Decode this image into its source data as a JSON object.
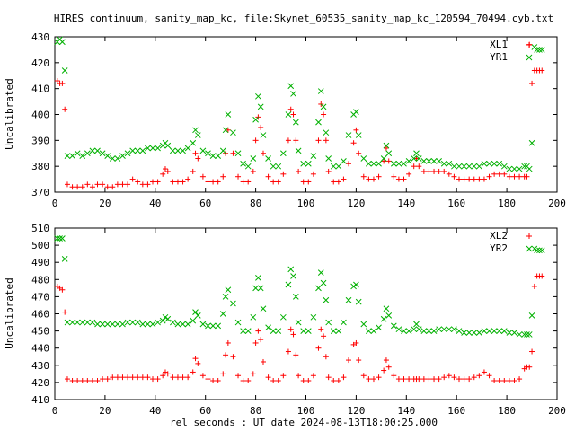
{
  "figure": {
    "title": "HIRES continuum, sanity_map_kc, file:Skynet_60535_sanity_map_kc_120594_70494.cyb.txt",
    "xlabel": "rel seconds : UT date 2024-08-13T18:00:25.000"
  },
  "colors": {
    "red_series": "#ff0000",
    "green_series": "#00b000",
    "axis": "#000000"
  },
  "chart_data": [
    {
      "type": "scatter",
      "title": "",
      "xlabel": "",
      "ylabel": "Uncalibrated",
      "xlim": [
        0,
        200
      ],
      "ylim": [
        370,
        430
      ],
      "x_ticks": [
        0,
        20,
        40,
        60,
        80,
        100,
        120,
        140,
        160,
        180,
        200
      ],
      "y_ticks": [
        370,
        380,
        390,
        400,
        410,
        420,
        430
      ],
      "legend_position": "top-right",
      "grid": false,
      "series": [
        {
          "name": "XL1",
          "marker": "plus",
          "color": "#ff0000",
          "x": [
            1,
            2,
            3,
            4,
            5,
            7,
            9,
            11,
            13,
            15,
            17,
            19,
            21,
            23,
            25,
            27,
            29,
            31,
            33,
            35,
            37,
            39,
            41,
            43,
            44,
            45,
            47,
            49,
            51,
            53,
            55,
            56,
            57,
            59,
            61,
            63,
            65,
            67,
            68,
            69,
            71,
            73,
            75,
            77,
            79,
            80,
            81,
            82,
            83,
            85,
            87,
            89,
            91,
            93,
            94,
            95,
            96,
            97,
            99,
            101,
            103,
            105,
            106,
            107,
            108,
            109,
            111,
            113,
            115,
            117,
            119,
            120,
            121,
            123,
            125,
            127,
            129,
            131,
            132,
            133,
            135,
            137,
            139,
            141,
            143,
            144,
            145,
            147,
            149,
            151,
            153,
            155,
            157,
            159,
            161,
            163,
            165,
            167,
            169,
            171,
            173,
            175,
            177,
            179,
            181,
            183,
            185,
            187,
            188,
            189,
            190,
            191,
            192,
            193,
            194
          ],
          "y": [
            413,
            412,
            412,
            402,
            373,
            372,
            372,
            372,
            373,
            372,
            373,
            373,
            372,
            372,
            373,
            373,
            373,
            375,
            374,
            373,
            373,
            374,
            374,
            377,
            379,
            378,
            374,
            374,
            374,
            375,
            378,
            385,
            383,
            376,
            374,
            374,
            374,
            376,
            385,
            394,
            385,
            376,
            374,
            374,
            378,
            390,
            399,
            395,
            385,
            376,
            374,
            374,
            377,
            390,
            402,
            400,
            390,
            378,
            374,
            374,
            377,
            390,
            404,
            400,
            390,
            378,
            374,
            374,
            375,
            381,
            389,
            394,
            385,
            376,
            375,
            375,
            376,
            382,
            387,
            382,
            376,
            375,
            375,
            377,
            380,
            383,
            380,
            378,
            378,
            378,
            378,
            378,
            377,
            376,
            375,
            375,
            375,
            375,
            375,
            375,
            376,
            377,
            377,
            377,
            376,
            376,
            376,
            376,
            376,
            427,
            412,
            417,
            417,
            417,
            417
          ]
        },
        {
          "name": "YR1",
          "marker": "cross",
          "color": "#00b000",
          "x": [
            1,
            2,
            3,
            4,
            5,
            7,
            9,
            11,
            13,
            15,
            17,
            19,
            21,
            23,
            25,
            27,
            29,
            31,
            33,
            35,
            37,
            39,
            41,
            43,
            44,
            45,
            47,
            49,
            51,
            53,
            55,
            56,
            57,
            59,
            61,
            63,
            65,
            67,
            68,
            69,
            71,
            73,
            75,
            77,
            79,
            80,
            81,
            82,
            83,
            85,
            87,
            89,
            91,
            93,
            94,
            95,
            96,
            97,
            99,
            101,
            103,
            105,
            106,
            107,
            108,
            109,
            111,
            113,
            115,
            117,
            119,
            120,
            121,
            123,
            125,
            127,
            129,
            131,
            132,
            133,
            135,
            137,
            139,
            141,
            143,
            144,
            145,
            147,
            149,
            151,
            153,
            155,
            157,
            159,
            161,
            163,
            165,
            167,
            169,
            171,
            173,
            175,
            177,
            179,
            181,
            183,
            185,
            187,
            188,
            189,
            190,
            191,
            192,
            193,
            194
          ],
          "y": [
            428,
            429,
            428,
            417,
            384,
            384,
            385,
            384,
            385,
            386,
            386,
            385,
            384,
            383,
            383,
            384,
            385,
            386,
            386,
            386,
            387,
            387,
            387,
            388,
            389,
            388,
            386,
            386,
            386,
            387,
            389,
            394,
            392,
            386,
            385,
            384,
            384,
            386,
            394,
            400,
            393,
            385,
            381,
            380,
            383,
            398,
            407,
            403,
            392,
            383,
            380,
            380,
            385,
            400,
            411,
            408,
            397,
            386,
            381,
            381,
            384,
            397,
            409,
            403,
            393,
            383,
            380,
            380,
            382,
            392,
            400,
            401,
            392,
            383,
            381,
            381,
            381,
            383,
            388,
            385,
            381,
            381,
            381,
            382,
            383,
            385,
            383,
            382,
            382,
            382,
            382,
            381,
            381,
            380,
            380,
            380,
            380,
            380,
            380,
            381,
            381,
            381,
            381,
            380,
            379,
            379,
            379,
            380,
            380,
            379,
            389,
            426,
            425,
            425,
            425
          ]
        }
      ]
    },
    {
      "type": "scatter",
      "title": "",
      "xlabel": "",
      "ylabel": "Uncalibrated",
      "xlim": [
        0,
        200
      ],
      "ylim": [
        410,
        510
      ],
      "x_ticks": [
        0,
        20,
        40,
        60,
        80,
        100,
        120,
        140,
        160,
        180,
        200
      ],
      "y_ticks": [
        410,
        420,
        430,
        440,
        450,
        460,
        470,
        480,
        490,
        500,
        510
      ],
      "legend_position": "top-right",
      "grid": false,
      "series": [
        {
          "name": "XL2",
          "marker": "plus",
          "color": "#ff0000",
          "x": [
            1,
            2,
            3,
            4,
            5,
            7,
            9,
            11,
            13,
            15,
            17,
            19,
            21,
            23,
            25,
            27,
            29,
            31,
            33,
            35,
            37,
            39,
            41,
            43,
            44,
            45,
            47,
            49,
            51,
            53,
            55,
            56,
            57,
            59,
            61,
            63,
            65,
            67,
            68,
            69,
            71,
            73,
            75,
            77,
            79,
            80,
            81,
            82,
            83,
            85,
            87,
            89,
            91,
            93,
            94,
            95,
            96,
            97,
            99,
            101,
            103,
            105,
            106,
            107,
            108,
            109,
            111,
            113,
            115,
            117,
            119,
            120,
            121,
            123,
            125,
            127,
            129,
            131,
            132,
            133,
            135,
            137,
            139,
            141,
            143,
            144,
            145,
            147,
            149,
            151,
            153,
            155,
            157,
            159,
            161,
            163,
            165,
            167,
            169,
            171,
            173,
            175,
            177,
            179,
            181,
            183,
            185,
            187,
            188,
            189,
            190,
            191,
            192,
            193,
            194
          ],
          "y": [
            476,
            475,
            474,
            461,
            422,
            421,
            421,
            421,
            421,
            421,
            421,
            422,
            422,
            423,
            423,
            423,
            423,
            423,
            423,
            423,
            423,
            422,
            422,
            424,
            426,
            425,
            423,
            423,
            423,
            423,
            426,
            434,
            431,
            424,
            422,
            421,
            421,
            425,
            436,
            443,
            435,
            424,
            421,
            421,
            425,
            443,
            450,
            445,
            432,
            423,
            421,
            421,
            424,
            438,
            451,
            448,
            436,
            424,
            421,
            421,
            424,
            440,
            451,
            447,
            435,
            423,
            421,
            421,
            423,
            433,
            442,
            443,
            433,
            424,
            422,
            422,
            423,
            427,
            433,
            429,
            424,
            422,
            422,
            422,
            422,
            422,
            422,
            422,
            422,
            422,
            422,
            423,
            424,
            423,
            422,
            422,
            422,
            423,
            424,
            426,
            424,
            421,
            421,
            421,
            421,
            421,
            422,
            428,
            429,
            429,
            438,
            476,
            482,
            482,
            482
          ]
        },
        {
          "name": "YR2",
          "marker": "cross",
          "color": "#00b000",
          "x": [
            1,
            2,
            3,
            4,
            5,
            7,
            9,
            11,
            13,
            15,
            17,
            19,
            21,
            23,
            25,
            27,
            29,
            31,
            33,
            35,
            37,
            39,
            41,
            43,
            44,
            45,
            47,
            49,
            51,
            53,
            55,
            56,
            57,
            59,
            61,
            63,
            65,
            67,
            68,
            69,
            71,
            73,
            75,
            77,
            79,
            80,
            81,
            82,
            83,
            85,
            87,
            89,
            91,
            93,
            94,
            95,
            96,
            97,
            99,
            101,
            103,
            105,
            106,
            107,
            108,
            109,
            111,
            113,
            115,
            117,
            119,
            120,
            121,
            123,
            125,
            127,
            129,
            131,
            132,
            133,
            135,
            137,
            139,
            141,
            143,
            144,
            145,
            147,
            149,
            151,
            153,
            155,
            157,
            159,
            161,
            163,
            165,
            167,
            169,
            171,
            173,
            175,
            177,
            179,
            181,
            183,
            185,
            187,
            188,
            189,
            190,
            191,
            192,
            193,
            194
          ],
          "y": [
            504,
            504,
            504,
            492,
            455,
            455,
            455,
            455,
            455,
            455,
            454,
            454,
            454,
            454,
            454,
            454,
            455,
            455,
            455,
            454,
            454,
            454,
            455,
            456,
            458,
            457,
            455,
            454,
            454,
            454,
            456,
            461,
            459,
            454,
            453,
            453,
            453,
            460,
            470,
            474,
            466,
            455,
            450,
            450,
            458,
            475,
            481,
            475,
            463,
            452,
            450,
            450,
            458,
            477,
            486,
            482,
            470,
            455,
            450,
            450,
            458,
            475,
            484,
            478,
            468,
            455,
            450,
            450,
            455,
            468,
            476,
            477,
            467,
            454,
            450,
            450,
            452,
            457,
            463,
            459,
            453,
            451,
            450,
            450,
            451,
            454,
            451,
            450,
            450,
            450,
            451,
            451,
            451,
            451,
            450,
            449,
            449,
            449,
            449,
            450,
            450,
            450,
            450,
            450,
            449,
            449,
            448,
            448,
            448,
            448,
            459,
            498,
            497,
            497,
            497
          ]
        }
      ]
    }
  ]
}
